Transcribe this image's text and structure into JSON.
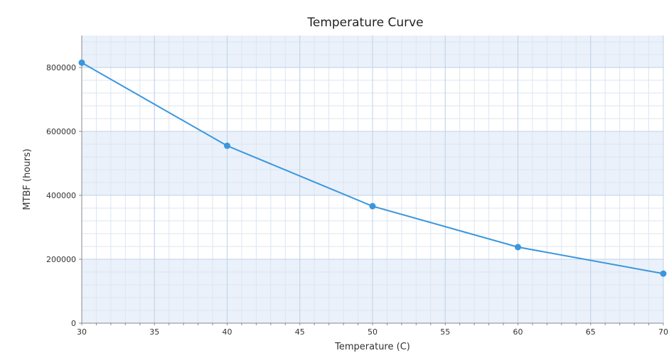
{
  "chart_data": {
    "type": "line",
    "title": "Temperature Curve",
    "xlabel": "Temperature (C)",
    "ylabel": "MTBF (hours)",
    "xlim": [
      30,
      70
    ],
    "ylim": [
      0,
      900000
    ],
    "xticks": [
      30,
      35,
      40,
      45,
      50,
      55,
      60,
      65,
      70
    ],
    "yticks": [
      0,
      200000,
      400000,
      600000,
      800000
    ],
    "grid": true,
    "series": [
      {
        "x": [
          30,
          40,
          50,
          60,
          70
        ],
        "values": [
          815000,
          555000,
          366000,
          238000,
          155000
        ]
      }
    ],
    "colors": {
      "line": "#3a96dd",
      "band": "#eaf1fa",
      "grid_major": "#bfd1e8",
      "grid_minor": "#dbe5f2",
      "axis": "#888888"
    }
  }
}
